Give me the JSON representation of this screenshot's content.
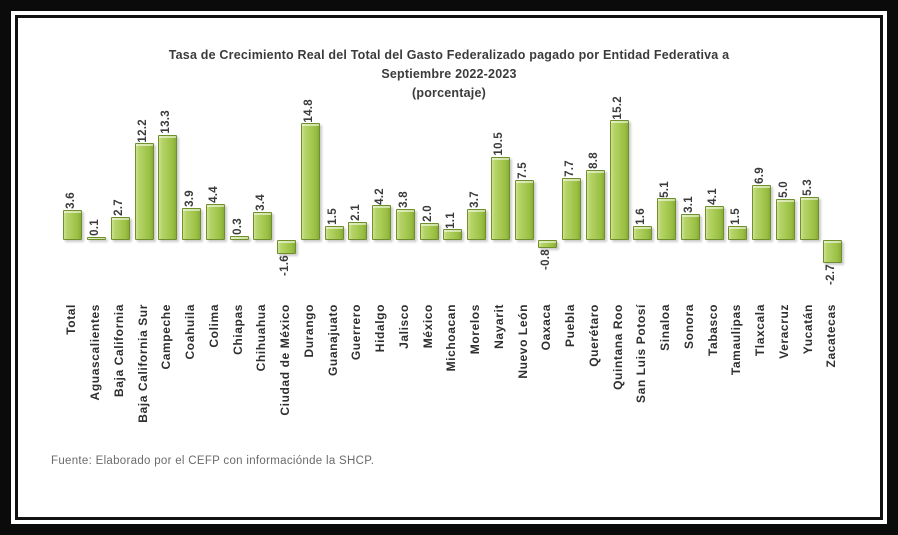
{
  "window": {
    "background_color": "#ffffff",
    "frame_border_color": "#0b0b0b"
  },
  "title": {
    "line1": "Tasa de Crecimiento Real del Total del Gasto Federalizado pagado por Entidad Federativa a",
    "line2": "Septiembre 2022-2023",
    "line3": "(porcentaje)"
  },
  "source_note": "Fuente: Elaborado por el CEFP con informaciónde la SHCP.",
  "chart_data": {
    "type": "bar",
    "title": "Tasa de Crecimiento Real del Total del Gasto Federalizado pagado por Entidad Federativa a Septiembre 2022-2023 (porcentaje)",
    "xlabel": "",
    "ylabel": "",
    "unit": "porcentaje (%)",
    "ylim": [
      -4,
      16
    ],
    "grid": false,
    "legend": false,
    "data_label_rotation": 90,
    "category_label_rotation": 90,
    "bar_color": "#a4c64e",
    "bar_border_color": "#6f8e2c",
    "bar_highlight_color": "#d2e298",
    "label_text_color": "#3b3b3b",
    "categories": [
      "Total",
      "Aguascalientes",
      "Baja California",
      "Baja California Sur",
      "Campeche",
      "Coahuila",
      "Colima",
      "Chiapas",
      "Chihuahua",
      "Ciudad de México",
      "Durango",
      "Guanajuato",
      "Guerrero",
      "Hidalgo",
      "Jalisco",
      "México",
      "Michoacan",
      "Morelos",
      "Nayarit",
      "Nuevo León",
      "Oaxaca",
      "Puebla",
      "Querétaro",
      "Quintana Roo",
      "San Luis Potosí",
      "Sinaloa",
      "Sonora",
      "Tabasco",
      "Tamaulipas",
      "Tlaxcala",
      "Veracruz",
      "Yucatán",
      "Zacatecas"
    ],
    "values": [
      3.6,
      0.1,
      2.7,
      12.2,
      13.3,
      3.9,
      4.4,
      0.3,
      3.4,
      -1.6,
      14.8,
      1.5,
      2.1,
      4.2,
      3.8,
      2.0,
      1.1,
      3.7,
      10.5,
      7.5,
      -0.8,
      7.7,
      8.8,
      15.2,
      1.6,
      5.1,
      3.1,
      4.1,
      1.5,
      6.9,
      5.0,
      5.3,
      -2.7
    ]
  }
}
